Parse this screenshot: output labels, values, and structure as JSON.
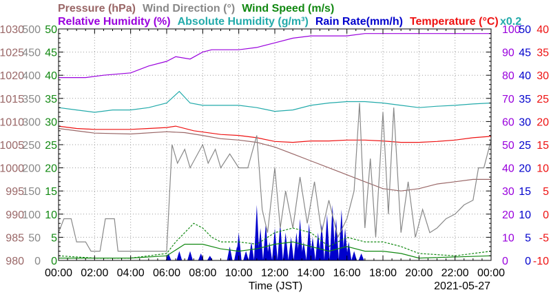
{
  "chart_data": {
    "type": "line",
    "xlabel": "Time (JST)",
    "date": "2021-05-27",
    "x_ticks": [
      "00:00",
      "02:00",
      "04:00",
      "06:00",
      "08:00",
      "10:00",
      "12:00",
      "14:00",
      "16:00",
      "18:00",
      "20:00",
      "22:00",
      "00:00"
    ],
    "legend": [
      {
        "label": "Pressure (hPa)",
        "color": "#996666",
        "row": 1
      },
      {
        "label": "Wind Direction (°)",
        "color": "#888888",
        "row": 1
      },
      {
        "label": "Wind Speed (m/s)",
        "color": "#118811",
        "row": 1
      },
      {
        "label": "Relative Humidity (%)",
        "color": "#9900dd",
        "row": 2
      },
      {
        "label": "Absolute Humidity (g/m³)",
        "color": "#22aaaa",
        "row": 2
      },
      {
        "label": "Rain Rate(mm/h)",
        "color": "#0000cc",
        "row": 2
      },
      {
        "label": "Temperature (°C)",
        "color": "#ee1111",
        "row": 2
      }
    ],
    "rain_scale_note": "x0.2",
    "axes": {
      "pressure": {
        "ticks": [
          "1030",
          "1025",
          "1020",
          "1015",
          "1010",
          "1005",
          "1000",
          "995",
          "990",
          "985",
          "980"
        ],
        "range": [
          980,
          1030
        ],
        "color": "#996666"
      },
      "wind_direction": {
        "ticks": [
          "500",
          "450",
          "400",
          "350",
          "300",
          "250",
          "200",
          "150",
          "100",
          "50",
          "0"
        ],
        "range": [
          0,
          500
        ],
        "color": "#888888"
      },
      "wind_speed": {
        "ticks": [
          "50",
          "45",
          "40",
          "35",
          "30",
          "25",
          "20",
          "15",
          "10",
          "5",
          "0"
        ],
        "range": [
          0,
          50
        ],
        "color": "#118811"
      },
      "relative_humidity": {
        "ticks": [
          "100",
          "90",
          "80",
          "70",
          "60",
          "50",
          "40",
          "30",
          "20",
          "10",
          "0"
        ],
        "range": [
          0,
          100
        ],
        "color": "#9900dd"
      },
      "rain_rate": {
        "ticks": [
          "50",
          "45",
          "40",
          "35",
          "30",
          "25",
          "20",
          "15",
          "10",
          "5",
          "0"
        ],
        "range": [
          0,
          50
        ],
        "color": "#0000cc"
      },
      "temperature": {
        "ticks": [
          "40",
          "35",
          "30",
          "25",
          "20",
          "15",
          "10",
          "5",
          "0",
          "-5",
          "-10"
        ],
        "range": [
          -10,
          40
        ],
        "color": "#ee1111"
      }
    },
    "series": [
      {
        "name": "Relative Humidity (%)",
        "axis": "relative_humidity",
        "color": "#9900dd",
        "points": [
          [
            0,
            79
          ],
          [
            1.5,
            79
          ],
          [
            2.5,
            80
          ],
          [
            4,
            81
          ],
          [
            5,
            84
          ],
          [
            6,
            86
          ],
          [
            6.5,
            88
          ],
          [
            7.3,
            87
          ],
          [
            8,
            90
          ],
          [
            8.5,
            91
          ],
          [
            10,
            91
          ],
          [
            11,
            92
          ],
          [
            12,
            94
          ],
          [
            13,
            96
          ],
          [
            14,
            97
          ],
          [
            16,
            97
          ],
          [
            17,
            98
          ],
          [
            24,
            98
          ]
        ]
      },
      {
        "name": "Absolute Humidity (g/m³)",
        "axis": "wind_speed",
        "color": "#22aaaa",
        "points": [
          [
            0,
            33
          ],
          [
            1,
            32.5
          ],
          [
            2,
            32
          ],
          [
            3,
            32.5
          ],
          [
            4,
            32.5
          ],
          [
            5,
            33
          ],
          [
            6,
            34
          ],
          [
            6.7,
            36.5
          ],
          [
            7.3,
            34
          ],
          [
            8,
            33.5
          ],
          [
            9,
            33.5
          ],
          [
            10,
            33.5
          ],
          [
            11,
            33
          ],
          [
            12,
            32.2
          ],
          [
            13,
            32.5
          ],
          [
            14,
            33.5
          ],
          [
            15,
            34
          ],
          [
            16,
            34.3
          ],
          [
            17,
            34.3
          ],
          [
            18,
            34
          ],
          [
            19,
            33.5
          ],
          [
            20,
            33
          ],
          [
            21,
            33.3
          ],
          [
            22,
            33.5
          ],
          [
            23,
            33.8
          ],
          [
            24,
            34
          ]
        ]
      },
      {
        "name": "Temperature (°C)",
        "axis": "temperature",
        "color": "#ee1111",
        "points": [
          [
            0,
            19
          ],
          [
            1,
            18.5
          ],
          [
            2,
            18.3
          ],
          [
            3,
            18.3
          ],
          [
            4,
            18.3
          ],
          [
            5,
            18.5
          ],
          [
            6,
            18.7
          ],
          [
            6.5,
            19
          ],
          [
            7.5,
            18
          ],
          [
            9,
            17.2
          ],
          [
            10,
            17
          ],
          [
            11,
            16.5
          ],
          [
            12,
            15.7
          ],
          [
            13,
            15.5
          ],
          [
            14,
            15.8
          ],
          [
            15,
            15.8
          ],
          [
            16,
            16
          ],
          [
            17,
            16
          ],
          [
            18,
            15.8
          ],
          [
            19,
            15.5
          ],
          [
            20,
            15.5
          ],
          [
            21,
            15.7
          ],
          [
            22,
            16
          ],
          [
            23,
            16.5
          ],
          [
            24,
            16.8
          ]
        ]
      },
      {
        "name": "Pressure (hPa)",
        "axis": "pressure",
        "color": "#996666",
        "points": [
          [
            0,
            1008.5
          ],
          [
            2,
            1007.5
          ],
          [
            4,
            1007.3
          ],
          [
            6,
            1007.8
          ],
          [
            7,
            1007.6
          ],
          [
            8,
            1007
          ],
          [
            9,
            1006.3
          ],
          [
            10,
            1006
          ],
          [
            11,
            1005.5
          ],
          [
            12,
            1004.5
          ],
          [
            13,
            1003
          ],
          [
            14,
            1001.5
          ],
          [
            15,
            1000
          ],
          [
            16,
            998.5
          ],
          [
            17,
            997
          ],
          [
            18,
            995.5
          ],
          [
            19,
            995
          ],
          [
            20,
            995.5
          ],
          [
            21,
            996.5
          ],
          [
            22,
            997
          ],
          [
            23,
            997.5
          ],
          [
            24,
            997.5
          ]
        ]
      },
      {
        "name": "Wind Direction (°)",
        "axis": "wind_direction",
        "color": "#888888",
        "points": [
          [
            0,
            60
          ],
          [
            0.3,
            90
          ],
          [
            0.7,
            90
          ],
          [
            1,
            40
          ],
          [
            1.5,
            40
          ],
          [
            1.8,
            20
          ],
          [
            2.3,
            20
          ],
          [
            2.6,
            90
          ],
          [
            3.1,
            90
          ],
          [
            3.3,
            20
          ],
          [
            6,
            20
          ],
          [
            6.3,
            250
          ],
          [
            6.6,
            210
          ],
          [
            7,
            240
          ],
          [
            7.3,
            200
          ],
          [
            8,
            250
          ],
          [
            8.3,
            210
          ],
          [
            8.7,
            240
          ],
          [
            9,
            200
          ],
          [
            9.5,
            230
          ],
          [
            10,
            200
          ],
          [
            10.5,
            200
          ],
          [
            11,
            270
          ],
          [
            11.3,
            110
          ],
          [
            11.6,
            60
          ],
          [
            12,
            200
          ],
          [
            12.3,
            70
          ],
          [
            12.6,
            150
          ],
          [
            13,
            70
          ],
          [
            13.4,
            180
          ],
          [
            13.8,
            80
          ],
          [
            14.2,
            170
          ],
          [
            14.6,
            60
          ],
          [
            15,
            130
          ],
          [
            15.5,
            50
          ],
          [
            16,
            90
          ],
          [
            16.4,
            150
          ],
          [
            16.7,
            340
          ],
          [
            17,
            70
          ],
          [
            17.3,
            220
          ],
          [
            17.6,
            50
          ],
          [
            18,
            320
          ],
          [
            18.3,
            100
          ],
          [
            18.6,
            330
          ],
          [
            19,
            60
          ],
          [
            19.4,
            170
          ],
          [
            19.8,
            50
          ],
          [
            20.2,
            110
          ],
          [
            20.6,
            60
          ],
          [
            21,
            70
          ],
          [
            21.5,
            90
          ],
          [
            22,
            100
          ],
          [
            22.5,
            120
          ],
          [
            23,
            130
          ],
          [
            23.3,
            200
          ],
          [
            23.6,
            200
          ],
          [
            24,
            260
          ]
        ]
      },
      {
        "name": "Wind Speed (m/s)",
        "axis": "wind_speed",
        "color": "#118811",
        "style": "dashed",
        "points": [
          [
            0,
            1
          ],
          [
            2,
            0.5
          ],
          [
            4,
            0.5
          ],
          [
            5,
            1
          ],
          [
            6,
            1.5
          ],
          [
            6.5,
            4
          ],
          [
            7,
            6
          ],
          [
            7.5,
            8
          ],
          [
            8,
            7
          ],
          [
            8.5,
            5
          ],
          [
            9,
            4
          ],
          [
            10,
            4
          ],
          [
            11,
            3.5
          ],
          [
            12,
            6
          ],
          [
            13,
            7
          ],
          [
            14,
            6
          ],
          [
            15,
            3
          ],
          [
            16,
            5
          ],
          [
            17,
            4
          ],
          [
            18,
            4
          ],
          [
            19,
            3
          ],
          [
            20,
            1.5
          ],
          [
            22,
            1
          ],
          [
            24,
            2
          ]
        ]
      },
      {
        "name": "Wind Speed mean",
        "axis": "wind_speed",
        "color": "#118811",
        "points": [
          [
            0,
            0.5
          ],
          [
            4,
            0.5
          ],
          [
            6,
            1
          ],
          [
            7,
            3.5
          ],
          [
            8,
            3.5
          ],
          [
            9,
            2.5
          ],
          [
            10,
            2
          ],
          [
            11,
            2.5
          ],
          [
            12,
            3.5
          ],
          [
            13,
            4
          ],
          [
            14,
            3
          ],
          [
            15,
            2
          ],
          [
            16,
            3
          ],
          [
            17,
            2
          ],
          [
            18,
            2
          ],
          [
            19,
            1.5
          ],
          [
            20,
            0.5
          ],
          [
            24,
            1
          ]
        ]
      }
    ],
    "rain": {
      "axis": "rain_rate",
      "color": "#0000cc",
      "bins": [
        [
          6.1,
          1.5
        ],
        [
          6.7,
          2
        ],
        [
          7.3,
          2
        ],
        [
          7.9,
          1.5
        ],
        [
          8.4,
          1
        ],
        [
          9.5,
          3
        ],
        [
          9.9,
          3
        ],
        [
          10,
          6
        ],
        [
          10.4,
          2
        ],
        [
          10.7,
          4
        ],
        [
          11,
          12
        ],
        [
          11.2,
          7
        ],
        [
          11.5,
          8
        ],
        [
          11.7,
          4
        ],
        [
          12,
          7
        ],
        [
          12.3,
          8
        ],
        [
          12.6,
          6
        ],
        [
          12.9,
          5
        ],
        [
          13.2,
          6
        ],
        [
          13.4,
          9
        ],
        [
          13.6,
          4
        ],
        [
          13.9,
          8
        ],
        [
          14.1,
          5
        ],
        [
          14.4,
          6
        ],
        [
          14.6,
          8
        ],
        [
          14.9,
          10
        ],
        [
          15.2,
          12
        ],
        [
          15.4,
          9
        ],
        [
          15.7,
          11
        ],
        [
          15.9,
          7
        ],
        [
          16.1,
          4
        ],
        [
          16.4,
          2
        ],
        [
          16.8,
          1.5
        ]
      ]
    }
  }
}
